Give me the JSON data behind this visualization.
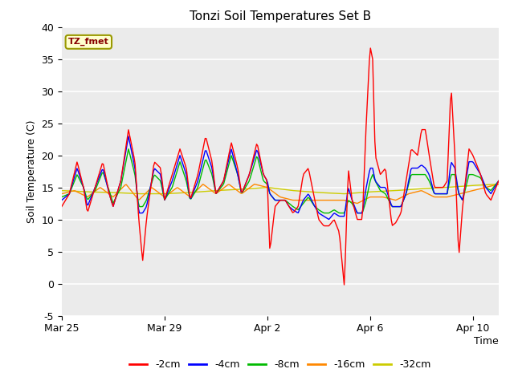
{
  "title": "Tonzi Soil Temperatures Set B",
  "xlabel": "Time",
  "ylabel": "Soil Temperature (C)",
  "ylim": [
    -5,
    40
  ],
  "yticks": [
    -5,
    0,
    5,
    10,
    15,
    20,
    25,
    30,
    35,
    40
  ],
  "xtick_labels": [
    "Mar 25",
    "Mar 29",
    "Apr 2",
    "Apr 6",
    "Apr 10"
  ],
  "xtick_positions": [
    0,
    4,
    8,
    12,
    16
  ],
  "legend_labels": [
    "-2cm",
    "-4cm",
    "-8cm",
    "-16cm",
    "-32cm"
  ],
  "legend_colors": [
    "#ff0000",
    "#0000ff",
    "#00bb00",
    "#ff8800",
    "#cccc00"
  ],
  "annotation_text": "TZ_fmet",
  "annotation_bg": "#ffffcc",
  "annotation_border": "#999900",
  "plot_bg": "#ebebeb",
  "grid_color": "#ffffff",
  "n_points": 400,
  "end_day": 17.0
}
